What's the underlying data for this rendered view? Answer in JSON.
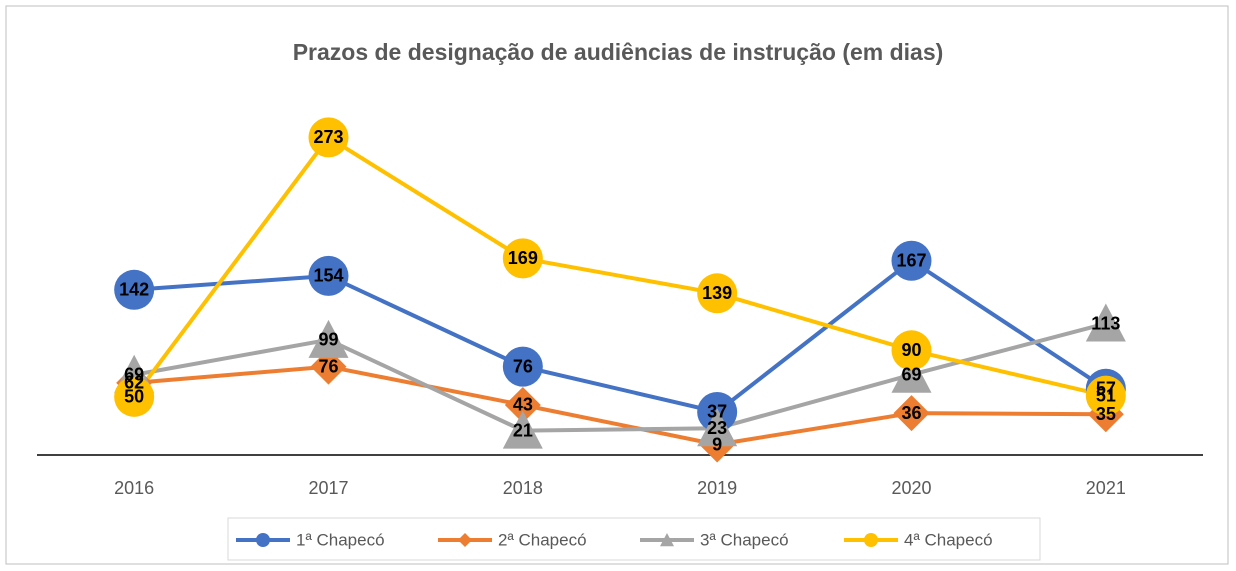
{
  "chart_data": {
    "type": "line",
    "title": "Prazos de designação de audiências de instrução (em dias)",
    "categories": [
      "2016",
      "2017",
      "2018",
      "2019",
      "2020",
      "2021"
    ],
    "ylim": [
      0,
      300
    ],
    "series": [
      {
        "name": "1ª Chapecó",
        "color": "#4472c4",
        "marker": "circle",
        "values": [
          142,
          154,
          76,
          37,
          167,
          57
        ]
      },
      {
        "name": "2ª Chapecó",
        "color": "#ed7d31",
        "marker": "diamond",
        "values": [
          62,
          76,
          43,
          9,
          36,
          35
        ]
      },
      {
        "name": "3ª Chapecó",
        "color": "#a5a5a5",
        "marker": "triangle",
        "values": [
          69,
          99,
          21,
          23,
          69,
          113
        ]
      },
      {
        "name": "4ª Chapecó",
        "color": "#ffc000",
        "marker": "circle",
        "values": [
          50,
          273,
          169,
          139,
          90,
          51
        ]
      }
    ]
  }
}
